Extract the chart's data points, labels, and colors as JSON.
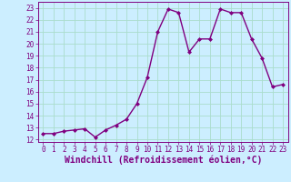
{
  "x": [
    0,
    1,
    2,
    3,
    4,
    5,
    6,
    7,
    8,
    9,
    10,
    11,
    12,
    13,
    14,
    15,
    16,
    17,
    18,
    19,
    20,
    21,
    22,
    23
  ],
  "y": [
    12.5,
    12.5,
    12.7,
    12.8,
    12.9,
    12.2,
    12.8,
    13.2,
    13.7,
    15.0,
    17.2,
    21.0,
    22.9,
    22.6,
    19.3,
    20.4,
    20.4,
    22.9,
    22.6,
    22.6,
    20.4,
    18.8,
    16.4,
    16.6
  ],
  "line_color": "#800080",
  "marker": "D",
  "marker_size": 2,
  "xlabel": "Windchill (Refroidissement éolien,°C)",
  "xlabel_fontsize": 7,
  "ylabel_ticks": [
    12,
    13,
    14,
    15,
    16,
    17,
    18,
    19,
    20,
    21,
    22,
    23
  ],
  "xlim": [
    -0.5,
    23.5
  ],
  "ylim": [
    11.8,
    23.5
  ],
  "background_color": "#cceeff",
  "grid_color": "#aaddcc",
  "tick_color": "#800080",
  "tick_fontsize": 5.5,
  "linewidth": 1.0
}
